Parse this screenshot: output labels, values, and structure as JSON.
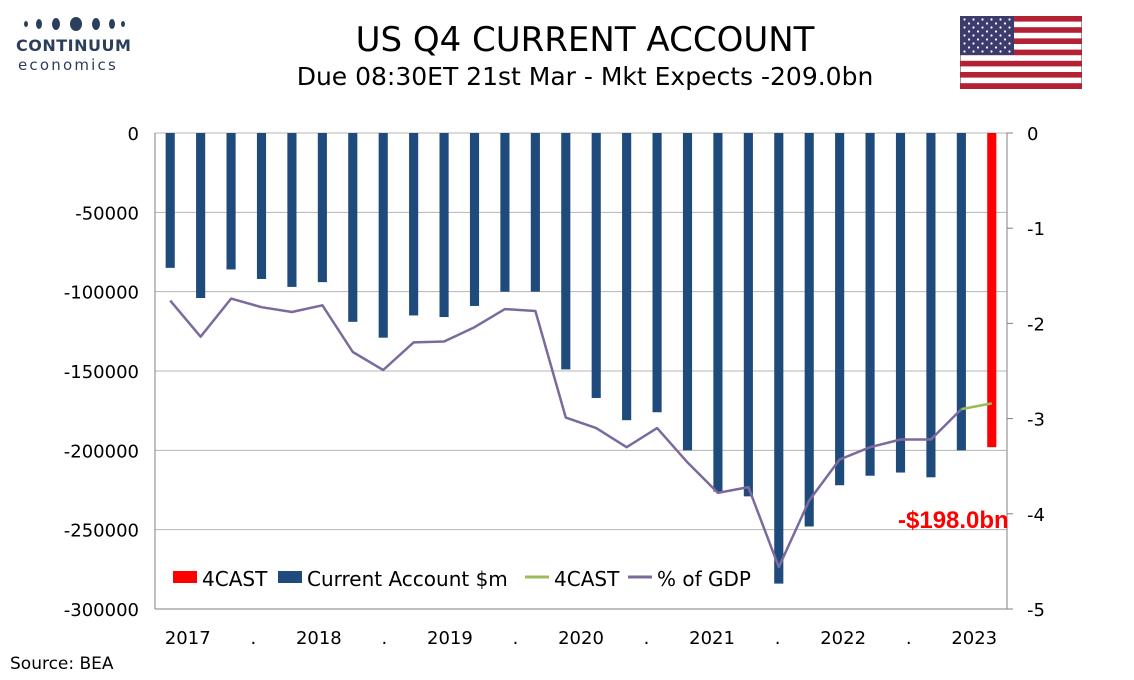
{
  "header": {
    "title": "US Q4 CURRENT ACCOUNT",
    "subtitle": "Due 08:30ET  21st Mar - Mkt Expects -209.0bn"
  },
  "logo": {
    "name": "CONTINUUM",
    "sub": "economics"
  },
  "source": "Source: BEA",
  "colors": {
    "current_account": "#1f4a7c",
    "forecast_bar": "#ff0000",
    "gdp_line": "#7b6a9e",
    "forecast_line": "#9bbb59",
    "annotation": "#ff0000",
    "logo": "#2b3f5c"
  },
  "icons": {
    "flag": "us-flag-icon",
    "logo_dots": "logo-dots-icon"
  },
  "chart_data": {
    "type": "bar",
    "title": "US Q4 CURRENT ACCOUNT",
    "categories": [
      "2017 Q1",
      "2017 Q2",
      "2017 Q3",
      "2017 Q4",
      "2018 Q1",
      "2018 Q2",
      "2018 Q3",
      "2018 Q4",
      "2019 Q1",
      "2019 Q2",
      "2019 Q3",
      "2019 Q4",
      "2020 Q1",
      "2020 Q2",
      "2020 Q3",
      "2020 Q4",
      "2021 Q1",
      "2021 Q2",
      "2021 Q3",
      "2021 Q4",
      "2022 Q1",
      "2022 Q2",
      "2022 Q3",
      "2022 Q4",
      "2023 Q1",
      "2023 Q2",
      "2023 Q3",
      "2023 Q4"
    ],
    "x_tick_labels": [
      "2017",
      ".",
      "2018",
      ".",
      "2019",
      ".",
      "2020",
      ".",
      "2021",
      ".",
      "2022",
      ".",
      "2023"
    ],
    "series": [
      {
        "name": "Current Account $m",
        "axis": "left",
        "type": "bar",
        "values": [
          -85000,
          -104000,
          -86000,
          -92000,
          -97000,
          -94000,
          -119000,
          -129000,
          -115000,
          -116000,
          -109000,
          -100000,
          -100000,
          -149000,
          -167000,
          -181000,
          -176000,
          -200000,
          -226000,
          -229000,
          -284000,
          -248000,
          -222000,
          -216000,
          -214000,
          -217000,
          -200000,
          null
        ]
      },
      {
        "name": "4CAST",
        "axis": "left",
        "type": "bar",
        "values": [
          null,
          null,
          null,
          null,
          null,
          null,
          null,
          null,
          null,
          null,
          null,
          null,
          null,
          null,
          null,
          null,
          null,
          null,
          null,
          null,
          null,
          null,
          null,
          null,
          null,
          null,
          null,
          -198000
        ]
      },
      {
        "name": "% of GDP",
        "axis": "right",
        "type": "line",
        "values": [
          -1.76,
          -2.14,
          -1.74,
          -1.83,
          -1.88,
          -1.81,
          -2.3,
          -2.49,
          -2.2,
          -2.19,
          -2.04,
          -1.85,
          -1.87,
          -2.99,
          -3.1,
          -3.3,
          -3.1,
          -3.46,
          -3.78,
          -3.72,
          -4.56,
          -3.86,
          -3.43,
          -3.3,
          -3.22,
          -3.22,
          -2.9,
          null
        ]
      },
      {
        "name": "4CAST",
        "axis": "right",
        "type": "line",
        "values": [
          null,
          null,
          null,
          null,
          null,
          null,
          null,
          null,
          null,
          null,
          null,
          null,
          null,
          null,
          null,
          null,
          null,
          null,
          null,
          null,
          null,
          null,
          null,
          null,
          null,
          null,
          -2.9,
          -2.84
        ]
      }
    ],
    "y_left": {
      "min": -300000,
      "max": 0,
      "ticks": [
        "0",
        "-50000",
        "-100000",
        "-150000",
        "-200000",
        "-250000",
        "-300000"
      ]
    },
    "y_right": {
      "min": -5,
      "max": 0,
      "ticks": [
        "0",
        "-1",
        "-2",
        "-3",
        "-4",
        "-5"
      ]
    },
    "grid": "horizontal",
    "legend_position": "bottom-left",
    "legend": [
      "4CAST",
      "Current Account $m",
      "4CAST",
      "% of GDP"
    ],
    "annotation": "-$198.0bn"
  }
}
